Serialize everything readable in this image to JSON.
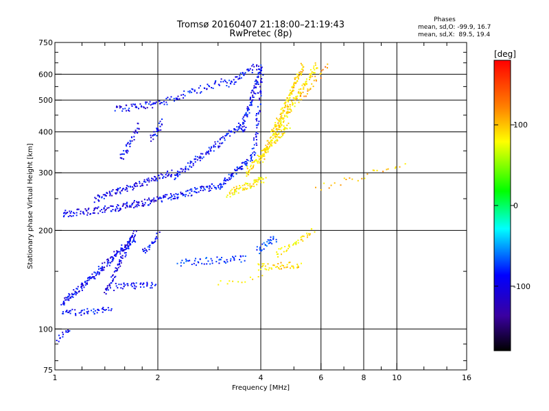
{
  "chart_data": {
    "type": "scatter",
    "title": "Tromsø 20160407 21:18:00–21:19:43",
    "subtitle": "RwPretec (8p)",
    "xlabel": "Frequency [MHz]",
    "ylabel": "Stationary phase Virtual Height [km]",
    "x_scale": "log",
    "y_scale": "log",
    "xlim": [
      1,
      16
    ],
    "ylim": [
      75,
      750
    ],
    "x_ticks": [
      1,
      2,
      4,
      6,
      8,
      10,
      16
    ],
    "y_ticks": [
      75,
      100,
      200,
      300,
      400,
      500,
      600,
      750
    ],
    "x_grid": [
      2,
      4,
      6,
      8,
      10
    ],
    "y_grid": [
      100,
      200,
      300,
      400,
      500,
      600
    ],
    "grid": true,
    "stats": {
      "heading": "Phases",
      "line_o": "mean, sd,O: -99.9, 16.7",
      "line_x": "mean, sd,X:  89.5, 19.4"
    },
    "colorbar": {
      "label": "[deg]",
      "range": [
        -180,
        180
      ],
      "ticks": [
        {
          "value": 100,
          "label": "100"
        },
        {
          "value": 0,
          "label": "0"
        },
        {
          "value": -100,
          "label": "-100"
        }
      ]
    },
    "series": [
      {
        "name": "",
        "traces": [
          {
            "x0": 1.05,
            "x1": 1.5,
            "h0": 225,
            "h1": 235,
            "phase": -110,
            "n": 70
          },
          {
            "x0": 1.5,
            "x1": 2.0,
            "h0": 235,
            "h1": 250,
            "phase": -110,
            "n": 70
          },
          {
            "x0": 2.0,
            "x1": 3.0,
            "h0": 250,
            "h1": 275,
            "phase": -100,
            "n": 90
          },
          {
            "x0": 3.0,
            "x1": 3.8,
            "h0": 275,
            "h1": 340,
            "phase": -95,
            "n": 70
          },
          {
            "x0": 3.8,
            "x1": 4.0,
            "h0": 340,
            "h1": 600,
            "phase": -105,
            "n": 50
          },
          {
            "x0": 1.3,
            "x1": 2.2,
            "h0": 250,
            "h1": 300,
            "phase": -105,
            "n": 110
          },
          {
            "x0": 2.2,
            "x1": 3.5,
            "h0": 290,
            "h1": 420,
            "phase": -100,
            "n": 110
          },
          {
            "x0": 3.5,
            "x1": 4.0,
            "h0": 400,
            "h1": 640,
            "phase": -100,
            "n": 90
          },
          {
            "x0": 1.5,
            "x1": 2.0,
            "h0": 470,
            "h1": 490,
            "phase": -105,
            "n": 50
          },
          {
            "x0": 2.0,
            "x1": 3.2,
            "h0": 490,
            "h1": 580,
            "phase": -95,
            "n": 60
          },
          {
            "x0": 3.2,
            "x1": 3.9,
            "h0": 560,
            "h1": 640,
            "phase": -100,
            "n": 40
          },
          {
            "x0": 1.55,
            "x1": 1.75,
            "h0": 330,
            "h1": 420,
            "phase": -105,
            "n": 40
          },
          {
            "x0": 1.9,
            "x1": 2.05,
            "h0": 380,
            "h1": 430,
            "phase": -100,
            "n": 25
          },
          {
            "x0": 1.0,
            "x1": 1.1,
            "h0": 92,
            "h1": 100,
            "phase": -105,
            "n": 15
          },
          {
            "x0": 1.05,
            "x1": 1.45,
            "h0": 112,
            "h1": 115,
            "phase": -100,
            "n": 50
          },
          {
            "x0": 1.05,
            "x1": 1.7,
            "h0": 120,
            "h1": 190,
            "phase": -105,
            "n": 170
          },
          {
            "x0": 1.4,
            "x1": 1.7,
            "h0": 130,
            "h1": 200,
            "phase": -110,
            "n": 80
          },
          {
            "x0": 1.5,
            "x1": 1.95,
            "h0": 135,
            "h1": 137,
            "phase": -100,
            "n": 45
          },
          {
            "x0": 1.8,
            "x1": 2.0,
            "h0": 170,
            "h1": 195,
            "phase": -100,
            "n": 25
          },
          {
            "x0": 2.3,
            "x1": 3.6,
            "h0": 160,
            "h1": 165,
            "phase": -85,
            "n": 55
          },
          {
            "x0": 3.9,
            "x1": 4.4,
            "h0": 175,
            "h1": 190,
            "phase": -80,
            "n": 30
          },
          {
            "x0": 3.2,
            "x1": 4.1,
            "h0": 260,
            "h1": 290,
            "phase": 90,
            "n": 70
          },
          {
            "x0": 3.6,
            "x1": 4.8,
            "h0": 300,
            "h1": 420,
            "phase": 95,
            "n": 100
          },
          {
            "x0": 4.0,
            "x1": 5.3,
            "h0": 330,
            "h1": 640,
            "phase": 100,
            "n": 160
          },
          {
            "x0": 4.4,
            "x1": 5.8,
            "h0": 400,
            "h1": 640,
            "phase": 95,
            "n": 110
          },
          {
            "x0": 3.9,
            "x1": 5.2,
            "h0": 155,
            "h1": 158,
            "phase": 100,
            "n": 45
          },
          {
            "x0": 4.4,
            "x1": 5.7,
            "h0": 170,
            "h1": 200,
            "phase": 90,
            "n": 40
          },
          {
            "x0": 3.0,
            "x1": 4.0,
            "h0": 140,
            "h1": 145,
            "phase": 90,
            "n": 12
          },
          {
            "x0": 5.8,
            "x1": 10.5,
            "h0": 270,
            "h1": 320,
            "phase": 110,
            "n": 25
          },
          {
            "x0": 5.2,
            "x1": 6.2,
            "h0": 500,
            "h1": 640,
            "phase": 120,
            "n": 25
          }
        ]
      }
    ]
  }
}
